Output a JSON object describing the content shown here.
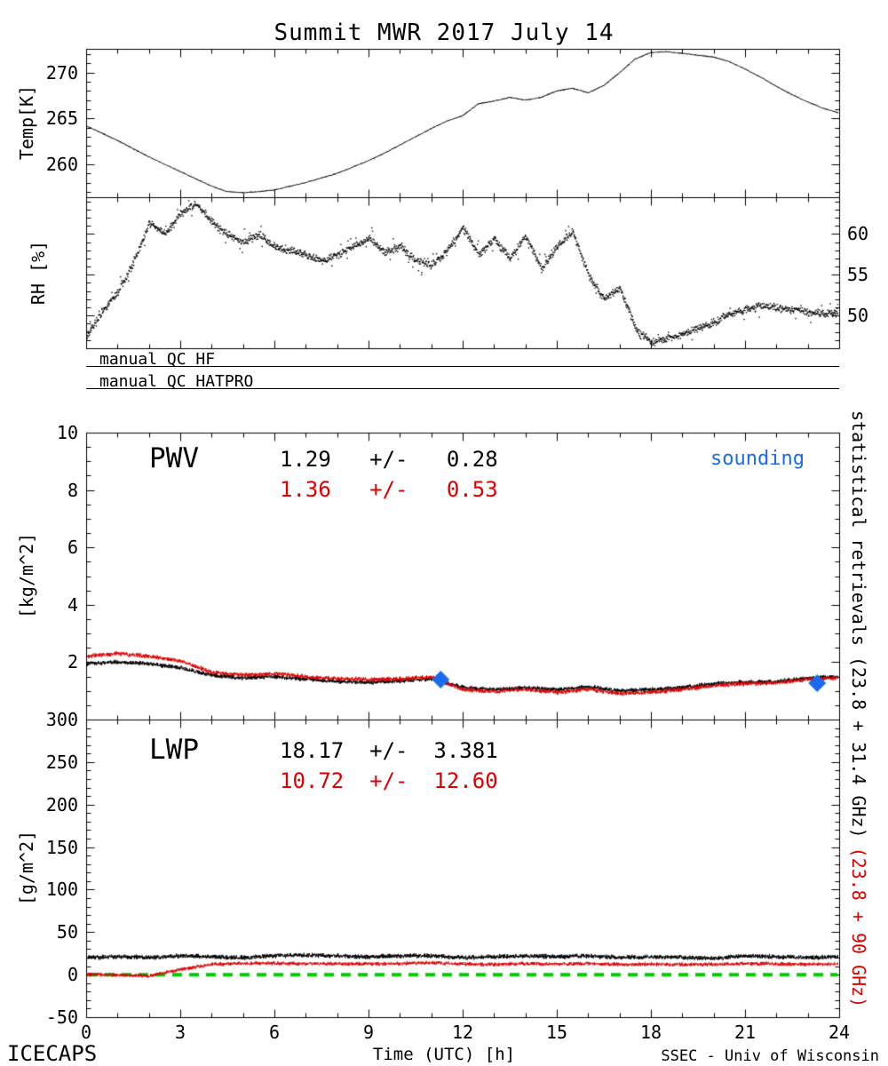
{
  "footer": {
    "left": "ICECAPS",
    "right": "SSEC - Univ of Wisconsin"
  },
  "qc_lines": [
    {
      "label": "manual QC HF"
    },
    {
      "label": "manual QC HATPRO"
    }
  ],
  "right_label": {
    "black": "statistical retrievals (23.8 + 31.4 GHz)",
    "red": "(23.8 + 90 GHz)"
  },
  "colors": {
    "trace_black": "#000000",
    "trace_red": "#dd0000",
    "sounding_blue": "#1a6aee",
    "zero_green": "#00cc00"
  },
  "chart_data": {
    "type": "line",
    "title": "Summit MWR 2017 July 14",
    "xlabel": "Time (UTC) [h]",
    "xlim": [
      0,
      24
    ],
    "xticks": [
      0,
      3,
      6,
      9,
      12,
      15,
      18,
      21,
      24
    ],
    "xtick_minor": 1,
    "grid": false,
    "panels": [
      {
        "name": "temperature",
        "ylabel": "Temp[K]",
        "ylim": [
          256.4,
          272.6
        ],
        "yticks": [
          260,
          265,
          270
        ],
        "ytick_minor": 1,
        "ytick_side": "left",
        "series": [
          {
            "name": "MWR surface temperature",
            "color": "#000000",
            "style": "line",
            "noise": 0.07,
            "x_step_hours": 0.5,
            "values": [
              264.2,
              263.4,
              262.6,
              261.7,
              260.8,
              260.0,
              259.2,
              258.4,
              257.6,
              257.0,
              256.9,
              257.0,
              257.2,
              257.6,
              258.0,
              258.5,
              259.0,
              259.7,
              260.4,
              261.2,
              262.1,
              263.0,
              263.9,
              264.7,
              265.3,
              266.6,
              266.9,
              267.3,
              267.0,
              267.3,
              268.0,
              268.3,
              267.8,
              268.6,
              270.0,
              271.5,
              272.2,
              272.3,
              272.1,
              271.9,
              271.7,
              271.2,
              270.4,
              269.5,
              268.5,
              267.6,
              266.8,
              266.1,
              265.6
            ]
          }
        ]
      },
      {
        "name": "rh",
        "ylabel": "RH [%]",
        "ylim": [
          46,
          64.5
        ],
        "yticks": [
          50,
          55,
          60
        ],
        "ytick_minor": 1,
        "ytick_side": "right",
        "series": [
          {
            "name": "MWR relative humidity",
            "color": "#000000",
            "style": "dots",
            "noise": 0.55,
            "x_step_hours": 0.5,
            "values": [
              47.5,
              50.5,
              53.0,
              56.5,
              61.5,
              60.0,
              62.5,
              63.8,
              61.5,
              60.0,
              59.0,
              60.0,
              58.5,
              58.0,
              57.5,
              56.8,
              57.5,
              58.5,
              59.5,
              57.8,
              58.5,
              56.8,
              56.3,
              58.0,
              60.8,
              57.5,
              59.5,
              57.0,
              59.8,
              55.8,
              58.5,
              60.3,
              55.0,
              52.0,
              53.5,
              48.5,
              46.8,
              47.2,
              47.8,
              48.5,
              49.3,
              50.2,
              50.8,
              51.3,
              51.0,
              50.8,
              50.4,
              50.3,
              50.5
            ]
          }
        ]
      },
      {
        "name": "pwv",
        "label": "PWV",
        "ylabel": "[kg/m^2]",
        "ylim": [
          0,
          10
        ],
        "yticks": [
          2,
          4,
          6,
          8,
          10
        ],
        "ytick_minor": 0.5,
        "ytick_side": "left",
        "stats": {
          "black": "1.29   +/-   0.28",
          "red": "1.36   +/-   0.53"
        },
        "sounding_label": "sounding",
        "sounding_points": [
          {
            "x": 11.3,
            "y": 1.39
          },
          {
            "x": 23.3,
            "y": 1.27
          }
        ],
        "series": [
          {
            "name": "PWV 23.8+31.4 GHz",
            "color": "#000000",
            "style": "line",
            "noise": 0.09,
            "x_step_hours": 1,
            "values": [
              1.95,
              2.0,
              1.95,
              1.8,
              1.55,
              1.45,
              1.5,
              1.4,
              1.32,
              1.3,
              1.35,
              1.42,
              1.12,
              1.05,
              1.1,
              1.05,
              1.15,
              1.0,
              1.05,
              1.12,
              1.25,
              1.3,
              1.32,
              1.45,
              1.5
            ]
          },
          {
            "name": "PWV 23.8+90 GHz",
            "color": "#dd0000",
            "style": "line",
            "noise": 0.09,
            "x_step_hours": 1,
            "values": [
              2.2,
              2.3,
              2.2,
              2.05,
              1.65,
              1.55,
              1.6,
              1.5,
              1.42,
              1.4,
              1.42,
              1.48,
              1.05,
              0.98,
              1.05,
              0.95,
              1.05,
              0.9,
              0.95,
              1.05,
              1.18,
              1.25,
              1.28,
              1.4,
              1.45
            ]
          }
        ]
      },
      {
        "name": "lwp",
        "label": "LWP",
        "ylabel": "[g/m^2]",
        "ylim": [
          -50,
          300
        ],
        "yticks": [
          -50,
          0,
          50,
          100,
          150,
          200,
          250,
          300
        ],
        "ytick_minor": 10,
        "ytick_side": "left",
        "stats": {
          "black": "18.17  +/-  3.381",
          "red": "10.72  +/-  12.60"
        },
        "zero_line": {
          "y": 0,
          "style": "dashed",
          "color": "#00cc00"
        },
        "series": [
          {
            "name": "LWP 23.8+31.4 GHz",
            "color": "#000000",
            "style": "line",
            "noise": 3.2,
            "x_step_hours": 1,
            "values": [
              20,
              21,
              20,
              22,
              21,
              20,
              22,
              23,
              22,
              21,
              22,
              22,
              20,
              21,
              22,
              21,
              22,
              20,
              21,
              20,
              19,
              22,
              21,
              20,
              21
            ]
          },
          {
            "name": "LWP 23.8+90 GHz",
            "color": "#dd0000",
            "style": "line",
            "noise": 2.6,
            "x_step_hours": 1,
            "values": [
              0.5,
              -0.5,
              -1.5,
              6,
              12,
              13,
              13.5,
              12.5,
              13,
              12.5,
              13,
              14,
              12.5,
              12,
              13,
              12.5,
              13,
              12,
              12.5,
              12,
              12,
              13,
              12.5,
              12,
              12.5
            ]
          }
        ]
      }
    ]
  }
}
